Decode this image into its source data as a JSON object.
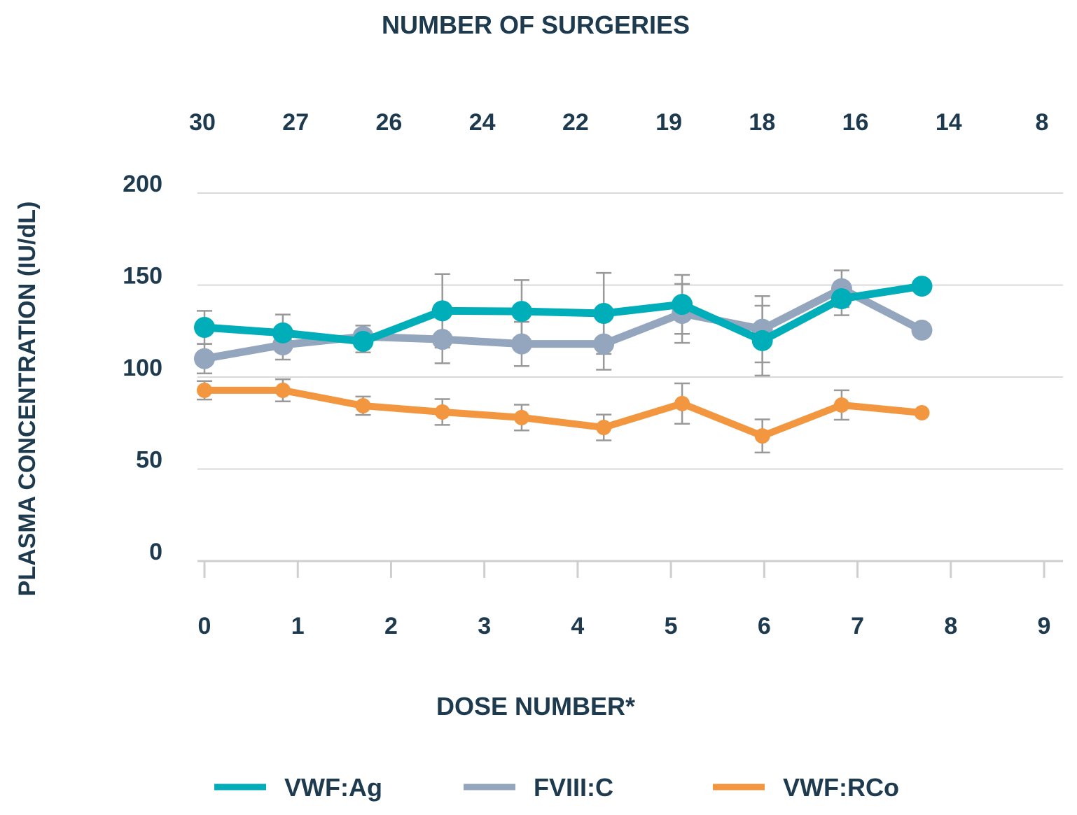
{
  "chart_data": {
    "type": "line",
    "top_title": "NUMBER OF SURGERIES",
    "top_tick_labels": [
      "30",
      "27",
      "26",
      "24",
      "22",
      "19",
      "18",
      "16",
      "14",
      "8"
    ],
    "xlabel": "DOSE NUMBER*",
    "ylabel": "PLASMA CONCENTRATION (IU/dL)",
    "x_tick_labels": [
      "0",
      "1",
      "2",
      "3",
      "4",
      "5",
      "6",
      "7",
      "8",
      "9"
    ],
    "y_tick_labels": [
      "0",
      "50",
      "100",
      "150",
      "200"
    ],
    "y_ticks": [
      0,
      50,
      100,
      150,
      200
    ],
    "xlim": [
      0,
      9
    ],
    "ylim": [
      0,
      200
    ],
    "grid": true,
    "legend_position": "bottom",
    "x": [
      0,
      0.84,
      1.7,
      2.55,
      3.4,
      4.28,
      5.12,
      5.98,
      6.83,
      7.69
    ],
    "series": [
      {
        "name": "FVIII:C",
        "color": "#94a6be",
        "marker_size": "large",
        "values": [
          110,
          117.5,
          122,
          120.5,
          118,
          118,
          134.6,
          126,
          148,
          125.5
        ],
        "errors": [
          8,
          8,
          6,
          13,
          12,
          14,
          16,
          18,
          10,
          0
        ]
      },
      {
        "name": "VWF:Ag",
        "color": "#00aeb9",
        "marker_size": "large",
        "values": [
          127,
          124,
          119.4,
          136,
          135.7,
          134.6,
          139.5,
          119.8,
          142.6,
          149.4
        ],
        "errors": [
          9,
          10,
          6,
          20,
          17,
          22,
          16,
          19,
          9,
          0
        ]
      },
      {
        "name": "VWF:RCo",
        "color": "#f2963f",
        "marker_size": "small",
        "values": [
          92.8,
          92.8,
          84.4,
          81,
          78,
          72.6,
          85.6,
          68,
          84.8,
          80.6
        ],
        "errors": [
          5,
          6,
          5,
          7,
          7,
          7,
          11,
          9,
          8,
          0
        ]
      }
    ],
    "legend_order": [
      1,
      0,
      2
    ]
  }
}
